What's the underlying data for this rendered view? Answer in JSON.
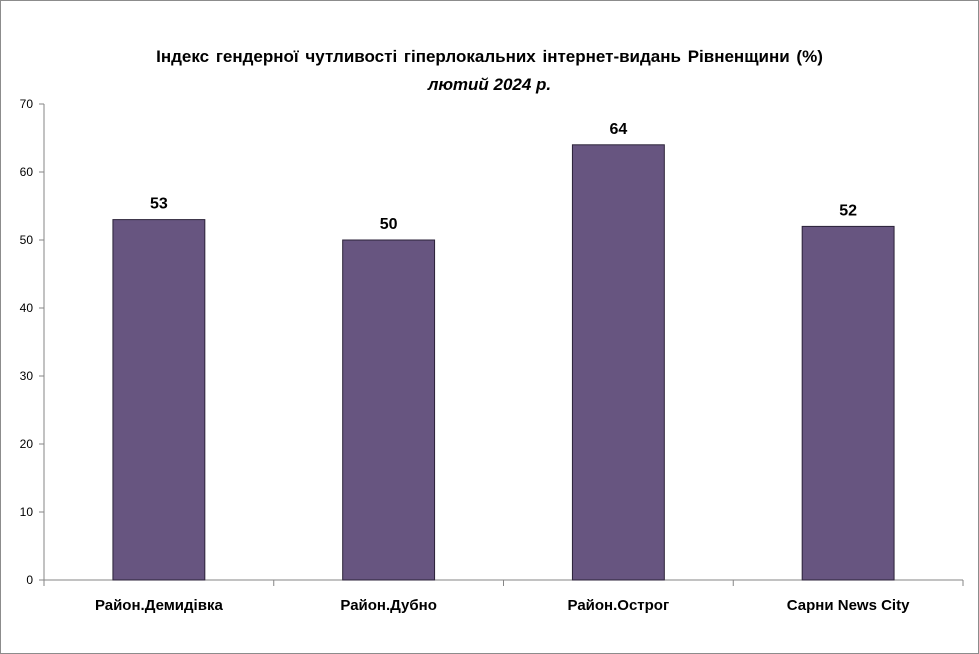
{
  "chart_data": {
    "type": "bar",
    "title": "Індекс гендерної чутливості гіперлокальних інтернет-видань Рівненщини (%)",
    "subtitle": "лютий 2024 р.",
    "categories": [
      "Район.Демидівка",
      "Район.Дубно",
      "Район.Острог",
      "Сарни News City"
    ],
    "values": [
      53,
      50,
      64,
      52
    ],
    "ylim": [
      0,
      70
    ],
    "yticks": [
      0,
      10,
      20,
      30,
      40,
      50,
      60,
      70
    ],
    "grid": false,
    "legend": "none",
    "bar_color": "#675580",
    "bar_stroke": "#2b2238"
  }
}
